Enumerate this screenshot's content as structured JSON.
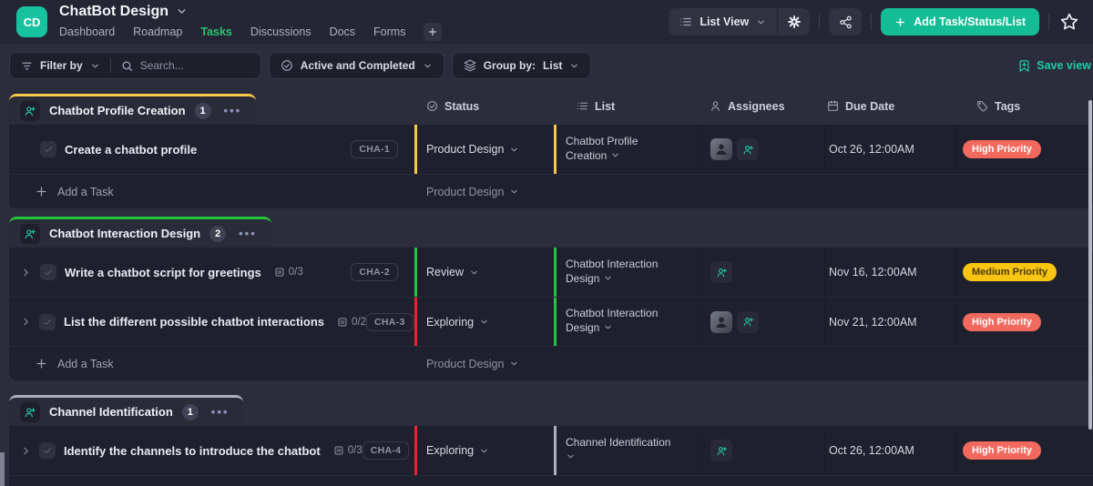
{
  "header": {
    "workspace_badge": "CD",
    "title": "ChatBot Design",
    "nav_items": [
      {
        "label": "Dashboard",
        "active": false
      },
      {
        "label": "Roadmap",
        "active": false
      },
      {
        "label": "Tasks",
        "active": true
      },
      {
        "label": "Discussions",
        "active": false
      },
      {
        "label": "Docs",
        "active": false
      },
      {
        "label": "Forms",
        "active": false
      }
    ],
    "view_selector_label": "List View",
    "add_button_label": "Add Task/Status/List"
  },
  "toolbar": {
    "filter_label": "Filter by",
    "search_placeholder": "Search...",
    "completion_filter_label": "Active and Completed",
    "group_by_label": "Group by:",
    "group_by_value": "List",
    "save_view_label": "Save view"
  },
  "table": {
    "columns": [
      "Status",
      "List",
      "Assignees",
      "Due Date",
      "Tags"
    ]
  },
  "colors": {
    "accent_teal": "#15bd96",
    "active_nav_green": "#29c46d",
    "status_yellow": "#f7c844",
    "status_green": "#23c440",
    "status_red": "#f0202e",
    "status_gray": "#aab0bb",
    "tag_high_bg": "#f2695d",
    "tag_medium_bg": "#f9c513"
  },
  "groups": [
    {
      "title": "Chatbot Profile Creation",
      "count": "1",
      "accent": "#f7c844",
      "tasks": [
        {
          "expandable": false,
          "name": "Create a chatbot profile",
          "checklist": "",
          "task_id": "CHA-1",
          "status": "Product Design",
          "status_color": "#f7c844",
          "list": "Chatbot Profile Creation",
          "list_color": "#f7c844",
          "has_avatar": true,
          "due": "Oct 26, 12:00AM",
          "tag": "High Priority",
          "tag_bg": "#f2695d",
          "tag_fg": "#ffffff"
        }
      ],
      "add_task_label": "Add a Task",
      "add_task_status": "Product Design"
    },
    {
      "title": "Chatbot Interaction Design",
      "count": "2",
      "accent": "#23c440",
      "tasks": [
        {
          "expandable": true,
          "name": "Write a chatbot script for greetings",
          "checklist": "0/3",
          "task_id": "CHA-2",
          "status": "Review",
          "status_color": "#23c440",
          "list": "Chatbot Interaction Design",
          "list_color": "#23c440",
          "has_avatar": false,
          "due": "Nov 16, 12:00AM",
          "tag": "Medium Priority",
          "tag_bg": "#f9c513",
          "tag_fg": "#4a3a00"
        },
        {
          "expandable": true,
          "name": "List the different possible chatbot interactions",
          "checklist": "0/2",
          "task_id": "CHA-3",
          "status": "Exploring",
          "status_color": "#f0202e",
          "list": "Chatbot Interaction Design",
          "list_color": "#23c440",
          "has_avatar": true,
          "due": "Nov 21, 12:00AM",
          "tag": "High Priority",
          "tag_bg": "#f2695d",
          "tag_fg": "#ffffff"
        }
      ],
      "add_task_label": "Add a Task",
      "add_task_status": "Product Design"
    },
    {
      "title": "Channel Identification",
      "count": "1",
      "accent": "#aab0bb",
      "tasks": [
        {
          "expandable": true,
          "name": "Identify the channels to introduce the chatbot",
          "checklist": "0/3",
          "task_id": "CHA-4",
          "status": "Exploring",
          "status_color": "#f0202e",
          "list": "Channel Identification",
          "list_color": "#aab0bb",
          "has_avatar": false,
          "due": "Oct 26, 12:00AM",
          "tag": "High Priority",
          "tag_bg": "#f2695d",
          "tag_fg": "#ffffff"
        }
      ],
      "add_task_label": "",
      "add_task_status": ""
    }
  ]
}
